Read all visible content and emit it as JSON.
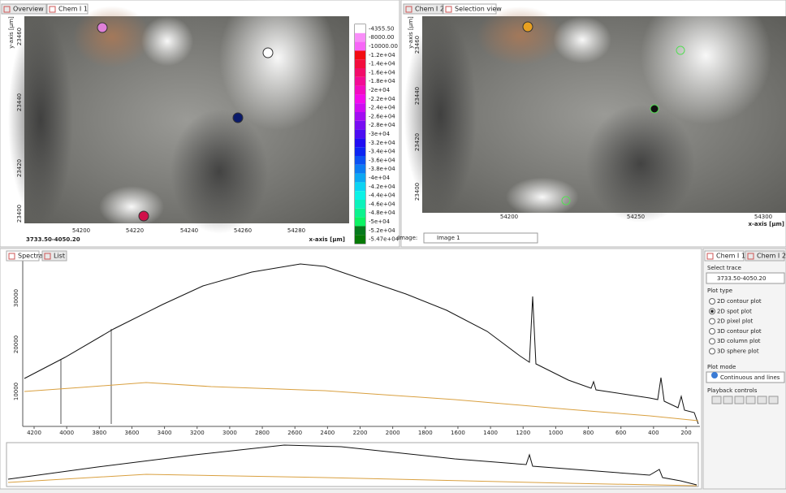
{
  "left_panel": {
    "tabs": [
      "Overview",
      "Chem I 1"
    ],
    "y_axis_label": "y-axis [µm]",
    "y_ticks": [
      "23460",
      "23440",
      "23420",
      "23400"
    ],
    "x_ticks": [
      "54200",
      "54220",
      "54240",
      "54260",
      "54280"
    ],
    "x_axis_label": "x-axis [µm]",
    "corner_label": "3733.50-4050.20",
    "colorbar": [
      "-4355.50",
      "-8000.00",
      "-10000.00",
      "-1.2e+04",
      "-1.4e+04",
      "-1.6e+04",
      "-1.8e+04",
      "-2e+04",
      "-2.2e+04",
      "-2.4e+04",
      "-2.6e+04",
      "-2.8e+04",
      "-3e+04",
      "-3.2e+04",
      "-3.4e+04",
      "-3.6e+04",
      "-3.8e+04",
      "-4e+04",
      "-4.2e+04",
      "-4.4e+04",
      "-4.6e+04",
      "-4.8e+04",
      "-5e+04",
      "-5.2e+04",
      "-5.47e+04"
    ]
  },
  "right_panel": {
    "tabs": [
      "Chem I 2",
      "Selection view"
    ],
    "y_axis_label": "y-axis [µm]",
    "y_ticks": [
      "23460",
      "23440",
      "23420",
      "23400"
    ],
    "x_ticks": [
      "54200",
      "54250",
      "54300"
    ],
    "x_axis_label": "x-axis [µm]",
    "image_label": "Image:",
    "image_select": "Image 1"
  },
  "spectra": {
    "tabs": [
      "Spectra",
      "List"
    ],
    "y_ticks": [
      "30000",
      "20000",
      "10000"
    ],
    "x_ticks": [
      "4200",
      "4000",
      "3800",
      "3600",
      "3400",
      "3200",
      "3000",
      "2800",
      "2600",
      "2400",
      "2200",
      "2000",
      "1800",
      "1600",
      "1400",
      "1200",
      "1000",
      "800",
      "600",
      "400",
      "200"
    ]
  },
  "side_panel": {
    "tabs": [
      "Chem I 1",
      "Chem I 2"
    ],
    "select_trace_label": "Select trace",
    "trace": "3733.50-4050.20",
    "plot_type_label": "Plot type",
    "plot_types": [
      "2D contour plot",
      "2D spot plot",
      "2D pixel plot",
      "3D contour plot",
      "3D column plot",
      "3D sphere plot"
    ],
    "plot_mode_label": "Plot mode",
    "plot_mode": "Continuous and lines",
    "playback_label": "Playback controls"
  }
}
